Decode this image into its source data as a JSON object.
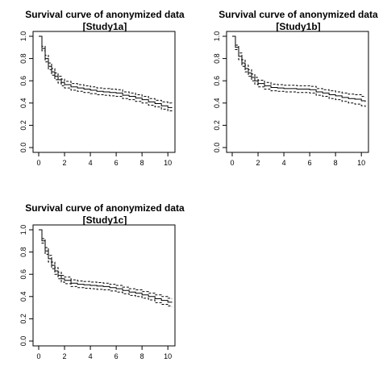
{
  "chart_data": [
    {
      "type": "line",
      "title": "Survival curve of anonymized data",
      "subtitle": "[Study1a]",
      "xlabel": "",
      "ylabel": "",
      "xlim": [
        0,
        10.3
      ],
      "ylim": [
        0,
        1.0
      ],
      "xticks": [
        "0",
        "2",
        "4",
        "6",
        "8",
        "10"
      ],
      "yticks": [
        "0.0",
        "0.2",
        "0.4",
        "0.6",
        "0.8",
        "1.0"
      ],
      "grid": false,
      "legend": "none",
      "series": [
        {
          "role": "estimate",
          "style": "solid",
          "x": [
            0,
            0.25,
            0.5,
            0.75,
            1.0,
            1.25,
            1.5,
            1.75,
            2.0,
            2.5,
            3.0,
            3.5,
            4.0,
            4.5,
            5.0,
            5.5,
            6.0,
            6.5,
            7.0,
            7.5,
            8.0,
            8.5,
            9.0,
            9.5,
            10.0,
            10.3
          ],
          "y": [
            1.0,
            0.89,
            0.8,
            0.73,
            0.68,
            0.64,
            0.61,
            0.585,
            0.565,
            0.545,
            0.535,
            0.525,
            0.515,
            0.505,
            0.5,
            0.495,
            0.49,
            0.47,
            0.46,
            0.445,
            0.43,
            0.41,
            0.395,
            0.375,
            0.36,
            0.355
          ]
        },
        {
          "role": "upper",
          "style": "dashed",
          "x": [
            0,
            0.25,
            0.5,
            0.75,
            1.0,
            1.25,
            1.5,
            1.75,
            2.0,
            2.5,
            3.0,
            3.5,
            4.0,
            4.5,
            5.0,
            5.5,
            6.0,
            6.5,
            7.0,
            7.5,
            8.0,
            8.5,
            9.0,
            9.5,
            10.0,
            10.3
          ],
          "y": [
            1.0,
            0.91,
            0.83,
            0.76,
            0.71,
            0.67,
            0.64,
            0.615,
            0.595,
            0.575,
            0.565,
            0.555,
            0.545,
            0.535,
            0.53,
            0.525,
            0.52,
            0.5,
            0.49,
            0.475,
            0.46,
            0.44,
            0.425,
            0.41,
            0.4,
            0.395
          ]
        },
        {
          "role": "lower",
          "style": "dashed",
          "x": [
            0,
            0.25,
            0.5,
            0.75,
            1.0,
            1.25,
            1.5,
            1.75,
            2.0,
            2.5,
            3.0,
            3.5,
            4.0,
            4.5,
            5.0,
            5.5,
            6.0,
            6.5,
            7.0,
            7.5,
            8.0,
            8.5,
            9.0,
            9.5,
            10.0,
            10.3
          ],
          "y": [
            1.0,
            0.87,
            0.77,
            0.7,
            0.65,
            0.61,
            0.58,
            0.555,
            0.535,
            0.515,
            0.505,
            0.495,
            0.485,
            0.475,
            0.47,
            0.465,
            0.46,
            0.44,
            0.43,
            0.415,
            0.4,
            0.38,
            0.365,
            0.345,
            0.33,
            0.32
          ]
        }
      ]
    },
    {
      "type": "line",
      "title": "Survival curve of anonymized data",
      "subtitle": "[Study1b]",
      "xlabel": "",
      "ylabel": "",
      "xlim": [
        0,
        10.3
      ],
      "ylim": [
        0,
        1.0
      ],
      "xticks": [
        "0",
        "2",
        "4",
        "6",
        "8",
        "10"
      ],
      "yticks": [
        "0.0",
        "0.2",
        "0.4",
        "0.6",
        "0.8",
        "1.0"
      ],
      "grid": false,
      "legend": "none",
      "series": [
        {
          "role": "estimate",
          "style": "solid",
          "x": [
            0,
            0.25,
            0.5,
            0.75,
            1.0,
            1.25,
            1.5,
            1.75,
            2.0,
            2.5,
            3.0,
            3.5,
            4.0,
            4.5,
            5.0,
            5.5,
            6.0,
            6.5,
            7.0,
            7.5,
            8.0,
            8.5,
            9.0,
            9.5,
            10.0,
            10.3
          ],
          "y": [
            1.0,
            0.9,
            0.82,
            0.76,
            0.71,
            0.67,
            0.63,
            0.6,
            0.575,
            0.555,
            0.54,
            0.535,
            0.53,
            0.53,
            0.525,
            0.525,
            0.52,
            0.5,
            0.49,
            0.475,
            0.465,
            0.45,
            0.44,
            0.435,
            0.42,
            0.41
          ]
        },
        {
          "role": "upper",
          "style": "dashed",
          "x": [
            0,
            0.25,
            0.5,
            0.75,
            1.0,
            1.25,
            1.5,
            1.75,
            2.0,
            2.5,
            3.0,
            3.5,
            4.0,
            4.5,
            5.0,
            5.5,
            6.0,
            6.5,
            7.0,
            7.5,
            8.0,
            8.5,
            9.0,
            9.5,
            10.0,
            10.3
          ],
          "y": [
            1.0,
            0.92,
            0.85,
            0.79,
            0.74,
            0.7,
            0.66,
            0.63,
            0.605,
            0.585,
            0.57,
            0.565,
            0.56,
            0.56,
            0.555,
            0.555,
            0.55,
            0.53,
            0.52,
            0.51,
            0.5,
            0.49,
            0.48,
            0.475,
            0.46,
            0.455
          ]
        },
        {
          "role": "lower",
          "style": "dashed",
          "x": [
            0,
            0.25,
            0.5,
            0.75,
            1.0,
            1.25,
            1.5,
            1.75,
            2.0,
            2.5,
            3.0,
            3.5,
            4.0,
            4.5,
            5.0,
            5.5,
            6.0,
            6.5,
            7.0,
            7.5,
            8.0,
            8.5,
            9.0,
            9.5,
            10.0,
            10.3
          ],
          "y": [
            1.0,
            0.88,
            0.79,
            0.73,
            0.68,
            0.64,
            0.6,
            0.57,
            0.545,
            0.525,
            0.51,
            0.505,
            0.5,
            0.5,
            0.495,
            0.495,
            0.49,
            0.47,
            0.46,
            0.44,
            0.43,
            0.415,
            0.4,
            0.39,
            0.375,
            0.365
          ]
        }
      ]
    },
    {
      "type": "line",
      "title": "Survival curve of anonymized data",
      "subtitle": "[Study1c]",
      "xlabel": "",
      "ylabel": "",
      "xlim": [
        0,
        10.3
      ],
      "ylim": [
        0,
        1.0
      ],
      "xticks": [
        "0",
        "2",
        "4",
        "6",
        "8",
        "10"
      ],
      "yticks": [
        "0.0",
        "0.2",
        "0.4",
        "0.6",
        "0.8",
        "1.0"
      ],
      "grid": false,
      "legend": "none",
      "series": [
        {
          "role": "estimate",
          "style": "solid",
          "x": [
            0,
            0.25,
            0.5,
            0.75,
            1.0,
            1.25,
            1.5,
            1.75,
            2.0,
            2.5,
            3.0,
            3.5,
            4.0,
            4.5,
            5.0,
            5.5,
            6.0,
            6.5,
            7.0,
            7.5,
            8.0,
            8.5,
            9.0,
            9.5,
            10.0,
            10.3
          ],
          "y": [
            1.0,
            0.9,
            0.81,
            0.74,
            0.68,
            0.63,
            0.59,
            0.56,
            0.545,
            0.52,
            0.51,
            0.505,
            0.5,
            0.495,
            0.49,
            0.48,
            0.47,
            0.455,
            0.44,
            0.43,
            0.415,
            0.4,
            0.38,
            0.365,
            0.35,
            0.345
          ]
        },
        {
          "role": "upper",
          "style": "dashed",
          "x": [
            0,
            0.25,
            0.5,
            0.75,
            1.0,
            1.25,
            1.5,
            1.75,
            2.0,
            2.5,
            3.0,
            3.5,
            4.0,
            4.5,
            5.0,
            5.5,
            6.0,
            6.5,
            7.0,
            7.5,
            8.0,
            8.5,
            9.0,
            9.5,
            10.0,
            10.3
          ],
          "y": [
            1.0,
            0.92,
            0.84,
            0.77,
            0.71,
            0.66,
            0.62,
            0.59,
            0.575,
            0.55,
            0.54,
            0.535,
            0.53,
            0.525,
            0.52,
            0.51,
            0.5,
            0.485,
            0.47,
            0.46,
            0.445,
            0.43,
            0.415,
            0.4,
            0.385,
            0.38
          ]
        },
        {
          "role": "lower",
          "style": "dashed",
          "x": [
            0,
            0.25,
            0.5,
            0.75,
            1.0,
            1.25,
            1.5,
            1.75,
            2.0,
            2.5,
            3.0,
            3.5,
            4.0,
            4.5,
            5.0,
            5.5,
            6.0,
            6.5,
            7.0,
            7.5,
            8.0,
            8.5,
            9.0,
            9.5,
            10.0,
            10.3
          ],
          "y": [
            1.0,
            0.88,
            0.78,
            0.71,
            0.65,
            0.6,
            0.56,
            0.53,
            0.515,
            0.49,
            0.48,
            0.475,
            0.47,
            0.465,
            0.46,
            0.45,
            0.44,
            0.425,
            0.41,
            0.4,
            0.385,
            0.37,
            0.345,
            0.33,
            0.315,
            0.31
          ]
        }
      ]
    }
  ]
}
